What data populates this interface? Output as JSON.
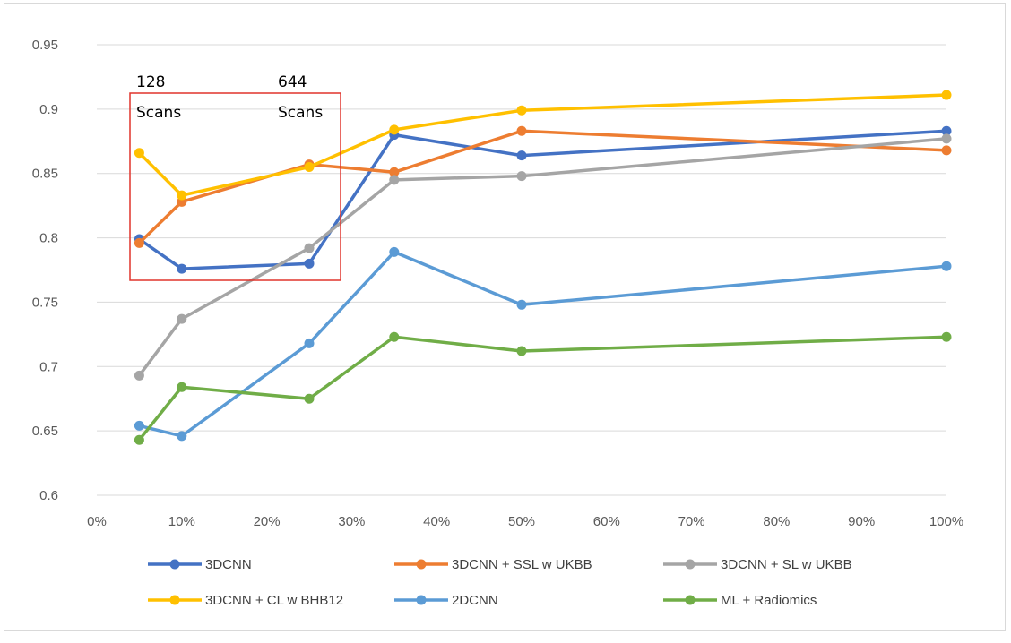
{
  "chart_data": {
    "type": "line",
    "x": [
      "5%",
      "10%",
      "25%",
      "35%",
      "50%",
      "100%"
    ],
    "x_values": [
      5,
      10,
      25,
      35,
      50,
      100
    ],
    "x_ticks": [
      "0%",
      "10%",
      "20%",
      "30%",
      "40%",
      "50%",
      "60%",
      "70%",
      "80%",
      "90%",
      "100%"
    ],
    "y_ticks": [
      "0.6",
      "0.65",
      "0.7",
      "0.75",
      "0.8",
      "0.85",
      "0.9",
      "0.95"
    ],
    "ylim": [
      0.6,
      0.95
    ],
    "xlim": [
      0,
      100
    ],
    "grid": "horizontal",
    "legend_position": "bottom",
    "series": [
      {
        "name": "3DCNN",
        "color": "#4472C4",
        "values": [
          0.799,
          0.776,
          0.78,
          0.88,
          0.864,
          0.883
        ]
      },
      {
        "name": "3DCNN + SSL w UKBB",
        "color": "#ED7D31",
        "values": [
          0.796,
          0.828,
          0.857,
          0.851,
          0.883,
          0.868
        ]
      },
      {
        "name": "3DCNN + SL w UKBB",
        "color": "#A5A5A5",
        "values": [
          0.693,
          0.737,
          0.792,
          0.845,
          0.848,
          0.877
        ]
      },
      {
        "name": "3DCNN + CL w BHB12",
        "color": "#FFC000",
        "values": [
          0.866,
          0.833,
          0.855,
          0.884,
          0.899,
          0.911
        ]
      },
      {
        "name": "2DCNN",
        "color": "#5B9BD5",
        "values": [
          0.654,
          0.646,
          0.718,
          0.789,
          0.748,
          0.778
        ]
      },
      {
        "name": "ML + Radiomics",
        "color": "#70AD47",
        "values": [
          0.643,
          0.684,
          0.675,
          0.723,
          0.712,
          0.723
        ]
      }
    ],
    "annotations": [
      {
        "line1": "128",
        "line2": "Scans"
      },
      {
        "line1": "644",
        "line2": "Scans"
      }
    ],
    "highlight_box_color": "#E0342C"
  }
}
